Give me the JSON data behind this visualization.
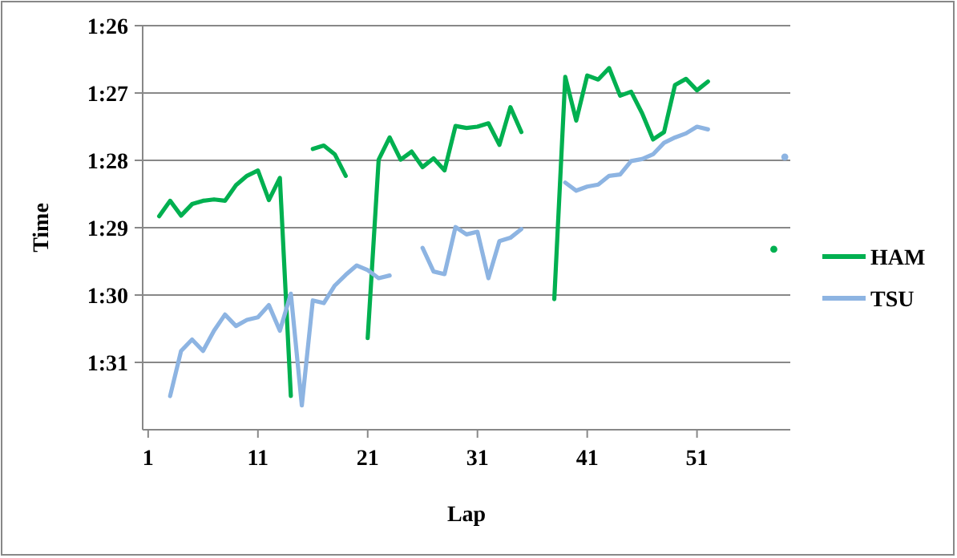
{
  "chart_data": {
    "type": "line",
    "xlabel": "Lap",
    "ylabel": "Time",
    "x": [
      2,
      3,
      4,
      5,
      6,
      7,
      8,
      9,
      10,
      11,
      12,
      13,
      14,
      15,
      16,
      17,
      18,
      19,
      20,
      21,
      22,
      23,
      24,
      25,
      26,
      27,
      28,
      29,
      30,
      31,
      32,
      33,
      34,
      35,
      36,
      37,
      38,
      39,
      40,
      41,
      42,
      43,
      44,
      45,
      46,
      47,
      48,
      49,
      50,
      51,
      52,
      53,
      54,
      55,
      56,
      57,
      58,
      59
    ],
    "xlim": [
      0.5,
      59.5
    ],
    "xticks": [
      1,
      11,
      21,
      31,
      41,
      51
    ],
    "ylim": [
      92,
      86
    ],
    "yticks": [
      {
        "value": 86,
        "label": "1:26"
      },
      {
        "value": 87,
        "label": "1:27"
      },
      {
        "value": 88,
        "label": "1:28"
      },
      {
        "value": 89,
        "label": "1:29"
      },
      {
        "value": 90,
        "label": "1:30"
      },
      {
        "value": 91,
        "label": "1:31"
      }
    ],
    "grid": "y",
    "legend": "right",
    "marker": "none",
    "line_style": "solid",
    "series": [
      {
        "name": "HAM",
        "color": "#00b050",
        "values": [
          88.83,
          88.6,
          88.82,
          88.65,
          88.6,
          88.58,
          88.6,
          88.37,
          88.23,
          88.15,
          88.59,
          88.26,
          91.5,
          null,
          87.83,
          87.78,
          87.91,
          88.23,
          null,
          90.64,
          87.99,
          87.66,
          87.99,
          87.87,
          88.1,
          87.97,
          88.15,
          87.49,
          87.52,
          87.5,
          87.45,
          87.77,
          87.21,
          87.58,
          null,
          null,
          90.06,
          86.76,
          87.41,
          86.74,
          86.8,
          86.63,
          87.04,
          86.98,
          87.3,
          87.69,
          87.58,
          86.88,
          86.79,
          86.96,
          86.83,
          null,
          null,
          null,
          null,
          null,
          89.32,
          null
        ]
      },
      {
        "name": "TSU",
        "color": "#8db4e2",
        "values": [
          null,
          91.5,
          90.83,
          90.66,
          90.83,
          90.53,
          90.29,
          90.46,
          90.37,
          90.33,
          90.15,
          90.53,
          89.98,
          91.64,
          90.08,
          90.12,
          89.86,
          89.7,
          89.56,
          89.63,
          89.75,
          89.71,
          null,
          null,
          89.3,
          89.65,
          89.69,
          88.99,
          89.1,
          89.06,
          89.75,
          89.2,
          89.15,
          89.02,
          null,
          null,
          null,
          88.33,
          88.45,
          88.39,
          88.36,
          88.23,
          88.21,
          88.01,
          87.98,
          87.91,
          87.74,
          87.66,
          87.6,
          87.5,
          87.54,
          null,
          null,
          null,
          null,
          null,
          null,
          87.95
        ]
      }
    ]
  }
}
